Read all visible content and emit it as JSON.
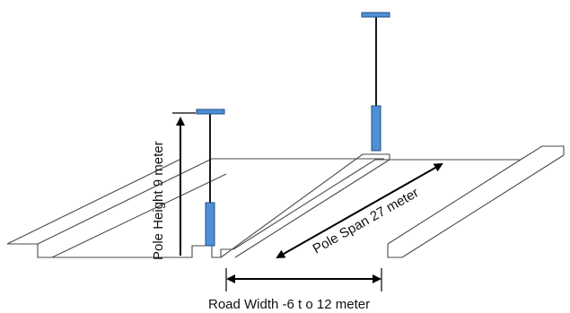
{
  "labels": {
    "pole_height": "Pole Height  9 meter",
    "pole_span": "Pole Span 27 meter",
    "road_width": "Road Width -6 t o 12 meter"
  },
  "colors": {
    "pole_base": "#4f8fd6",
    "lamp_head": "#4f8fd6",
    "road_edge": "#4a4a4a",
    "dimension_arrow": "#000000"
  }
}
